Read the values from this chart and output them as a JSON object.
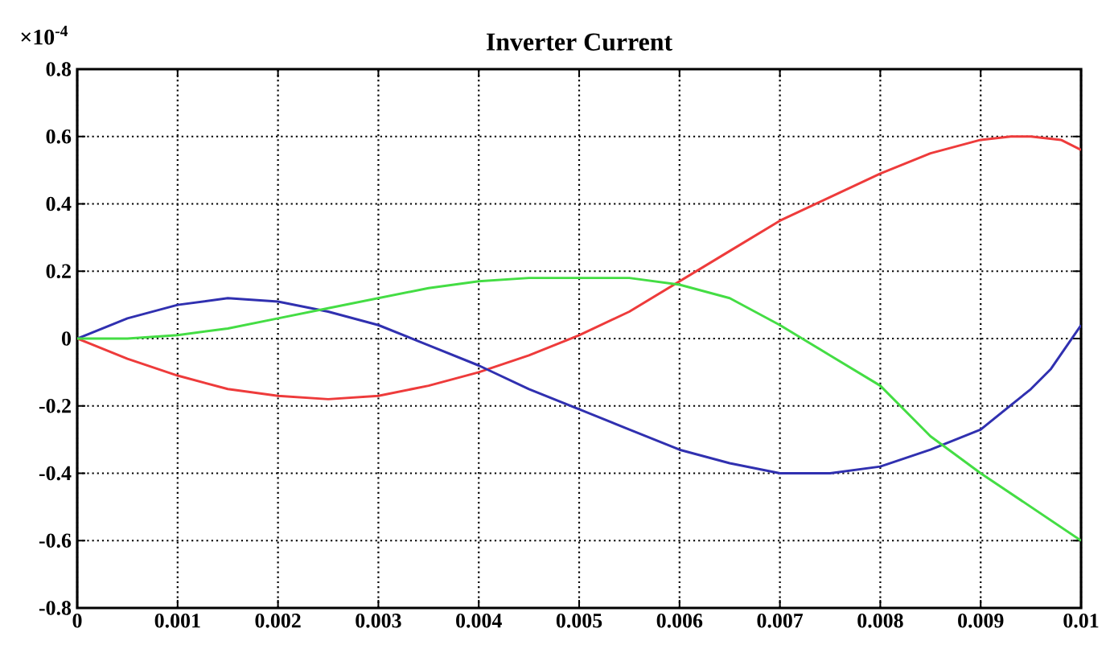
{
  "chart_data": {
    "type": "line",
    "title": "Inverter Current",
    "annotations": [
      "×10$^{-4}$"
    ],
    "xlim": [
      0,
      0.01
    ],
    "xticks": [
      0,
      0.001,
      0.002,
      0.003,
      0.004,
      0.005,
      0.006,
      0.007,
      0.008,
      0.009,
      0.01
    ],
    "ylim": [
      -0.8,
      0.8
    ],
    "yticks": [
      -0.8,
      -0.6,
      -0.4,
      -0.2,
      0,
      0.2,
      0.4,
      0.6,
      0.8
    ],
    "grid": true,
    "marker": "none",
    "line_style": "solid",
    "series": [
      {
        "color": "#ee3b3b",
        "x": [
          0,
          0.0005,
          0.001,
          0.0015,
          0.002,
          0.0025,
          0.003,
          0.0035,
          0.004,
          0.0045,
          0.005,
          0.0055,
          0.006,
          0.0065,
          0.007,
          0.0075,
          0.008,
          0.0085,
          0.009,
          0.0093,
          0.0095,
          0.0098,
          0.01
        ],
        "values": [
          0,
          -0.06,
          -0.11,
          -0.15,
          -0.17,
          -0.18,
          -0.17,
          -0.14,
          -0.1,
          -0.05,
          0.01,
          0.08,
          0.17,
          0.26,
          0.35,
          0.42,
          0.49,
          0.55,
          0.59,
          0.6,
          0.6,
          0.59,
          0.56
        ]
      },
      {
        "color": "#3030b0",
        "x": [
          0,
          0.0005,
          0.001,
          0.0015,
          0.002,
          0.0025,
          0.003,
          0.0035,
          0.004,
          0.0045,
          0.005,
          0.0055,
          0.006,
          0.0065,
          0.007,
          0.0075,
          0.008,
          0.0085,
          0.009,
          0.0095,
          0.0097,
          0.01
        ],
        "values": [
          0,
          0.06,
          0.1,
          0.12,
          0.11,
          0.08,
          0.04,
          -0.02,
          -0.08,
          -0.15,
          -0.21,
          -0.27,
          -0.33,
          -0.37,
          -0.4,
          -0.4,
          -0.38,
          -0.33,
          -0.27,
          -0.15,
          -0.09,
          0.04
        ]
      },
      {
        "color": "#44dd44",
        "x": [
          0,
          0.0005,
          0.001,
          0.0015,
          0.002,
          0.0025,
          0.003,
          0.0035,
          0.004,
          0.0045,
          0.005,
          0.0055,
          0.006,
          0.0065,
          0.007,
          0.0075,
          0.008,
          0.0085,
          0.009,
          0.0095,
          0.01
        ],
        "values": [
          0,
          0,
          0.01,
          0.03,
          0.06,
          0.09,
          0.12,
          0.15,
          0.17,
          0.18,
          0.18,
          0.18,
          0.16,
          0.12,
          0.04,
          -0.05,
          -0.14,
          -0.29,
          -0.4,
          -0.5,
          -0.6
        ]
      }
    ]
  }
}
